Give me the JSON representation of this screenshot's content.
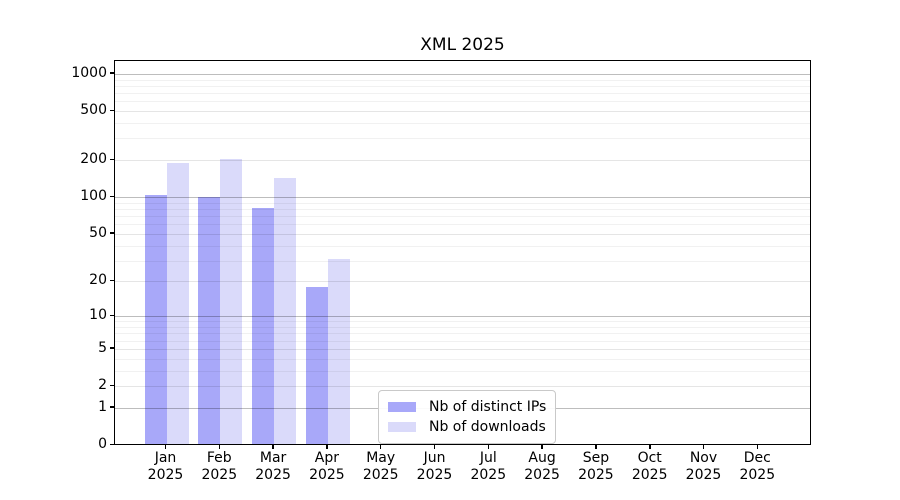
{
  "chart_data": {
    "type": "bar",
    "title": "XML 2025",
    "categories": [
      "Jan",
      "Feb",
      "Mar",
      "Apr",
      "May",
      "Jun",
      "Jul",
      "Aug",
      "Sep",
      "Oct",
      "Nov",
      "Dec"
    ],
    "category_year": "2025",
    "series": [
      {
        "name": "Nb of distinct IPs",
        "color": "#a8a8f9",
        "values": [
          105,
          100,
          82,
          18,
          0,
          0,
          0,
          0,
          0,
          0,
          0,
          0
        ]
      },
      {
        "name": "Nb of downloads",
        "color": "#dadafa",
        "values": [
          190,
          205,
          144,
          31,
          0,
          0,
          0,
          0,
          0,
          0,
          0,
          0
        ]
      }
    ],
    "yscale": "log(1+x)",
    "yticks": [
      1000,
      500,
      200,
      100,
      50,
      20,
      10,
      5,
      2,
      1,
      0
    ],
    "ylim": [
      0,
      1260
    ],
    "grid": "on",
    "legend": {
      "position": "lower center",
      "labels": [
        "Nb of distinct IPs",
        "Nb of downloads"
      ]
    }
  },
  "colors": {
    "background": "#ffffff",
    "spine": "#000000",
    "grid_major": "rgba(0,0,0,0.26)",
    "grid_sub": "rgba(0,0,0,0.10)",
    "grid_minor": "rgba(0,0,0,0.055)"
  }
}
